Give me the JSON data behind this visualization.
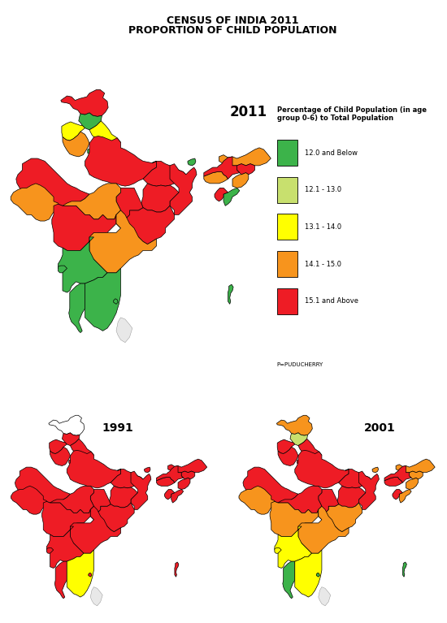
{
  "title_line1": "CENSUS OF INDIA 2011",
  "title_line2": "PROPORTION OF CHILD POPULATION",
  "year_2011": "2011",
  "year_1991": "1991",
  "year_2001": "2001",
  "legend_title": "Percentage of Child Population (in age\ngroup 0-6) to Total Population",
  "legend_items": [
    {
      "label": "12.0 and Below",
      "color": "#3cb34a"
    },
    {
      "label": "12.1 - 13.0",
      "color": "#c8e06e"
    },
    {
      "label": "13.1 - 14.0",
      "color": "#ffff00"
    },
    {
      "label": "14.1 - 15.0",
      "color": "#f7941d"
    },
    {
      "label": "15.1 and Above",
      "color": "#ee1c25"
    }
  ],
  "background_color": "#ffffff",
  "border_color": "#000000",
  "water_color": "#aad3df",
  "title_fontsize": 9,
  "label_fontsize": 4,
  "states_2011": {
    "Jammu & Kashmir": "RED",
    "Himachal Pradesh": "GREEN",
    "Punjab": "YELLOW",
    "Uttarakhand": "YELLOW",
    "Haryana": "ORANGE",
    "Delhi": "GREEN",
    "Rajasthan": "RED",
    "Uttar Pradesh": "RED",
    "Bihar": "RED",
    "Sikkim": "GREEN",
    "Arunachal Pradesh": "ORANGE",
    "Nagaland": "RED",
    "Manipur": "ORANGE",
    "Mizoram": "GREEN",
    "Tripura": "RED",
    "Meghalaya": "ORANGE",
    "Assam": "RED",
    "West Bengal": "RED",
    "Jharkhand": "RED",
    "Odisha": "RED",
    "Chhattisgarh": "RED",
    "Madhya Pradesh": "ORANGE",
    "Gujarat": "ORANGE",
    "Maharashtra": "RED",
    "Andhra Pradesh": "ORANGE",
    "Karnataka": "GREEN",
    "Goa": "GREEN",
    "Kerala": "GREEN",
    "Tamil Nadu": "GREEN",
    "Puducherry": "GREEN",
    "Andaman": "GREEN"
  },
  "states_1991": {
    "Jammu & Kashmir": "WHITE",
    "Himachal Pradesh": "RED",
    "Punjab": "RED",
    "Uttarakhand": "RED",
    "Haryana": "RED",
    "Delhi": "RED",
    "Rajasthan": "RED",
    "Uttar Pradesh": "RED",
    "Bihar": "RED",
    "Sikkim": "RED",
    "Arunachal Pradesh": "RED",
    "Nagaland": "RED",
    "Manipur": "RED",
    "Mizoram": "RED",
    "Tripura": "RED",
    "Meghalaya": "RED",
    "Assam": "RED",
    "West Bengal": "RED",
    "Jharkhand": "RED",
    "Odisha": "RED",
    "Chhattisgarh": "RED",
    "Madhya Pradesh": "RED",
    "Gujarat": "RED",
    "Maharashtra": "RED",
    "Andhra Pradesh": "RED",
    "Karnataka": "RED",
    "Goa": "RED",
    "Kerala": "RED",
    "Tamil Nadu": "YELLOW",
    "Puducherry": "RED",
    "Andaman": "RED"
  },
  "states_2001": {
    "Jammu & Kashmir": "ORANGE",
    "Himachal Pradesh": "LIGHT_GREEN",
    "Punjab": "RED",
    "Uttarakhand": "RED",
    "Haryana": "RED",
    "Delhi": "RED",
    "Rajasthan": "RED",
    "Uttar Pradesh": "RED",
    "Bihar": "RED",
    "Sikkim": "ORANGE",
    "Arunachal Pradesh": "ORANGE",
    "Nagaland": "ORANGE",
    "Manipur": "ORANGE",
    "Mizoram": "ORANGE",
    "Tripura": "RED",
    "Meghalaya": "RED",
    "Assam": "RED",
    "West Bengal": "RED",
    "Jharkhand": "RED",
    "Odisha": "ORANGE",
    "Chhattisgarh": "RED",
    "Madhya Pradesh": "RED",
    "Gujarat": "ORANGE",
    "Maharashtra": "ORANGE",
    "Andhra Pradesh": "ORANGE",
    "Karnataka": "YELLOW",
    "Goa": "YELLOW",
    "Kerala": "GREEN",
    "Tamil Nadu": "YELLOW",
    "Puducherry": "GREEN",
    "Andaman": "GREEN"
  }
}
